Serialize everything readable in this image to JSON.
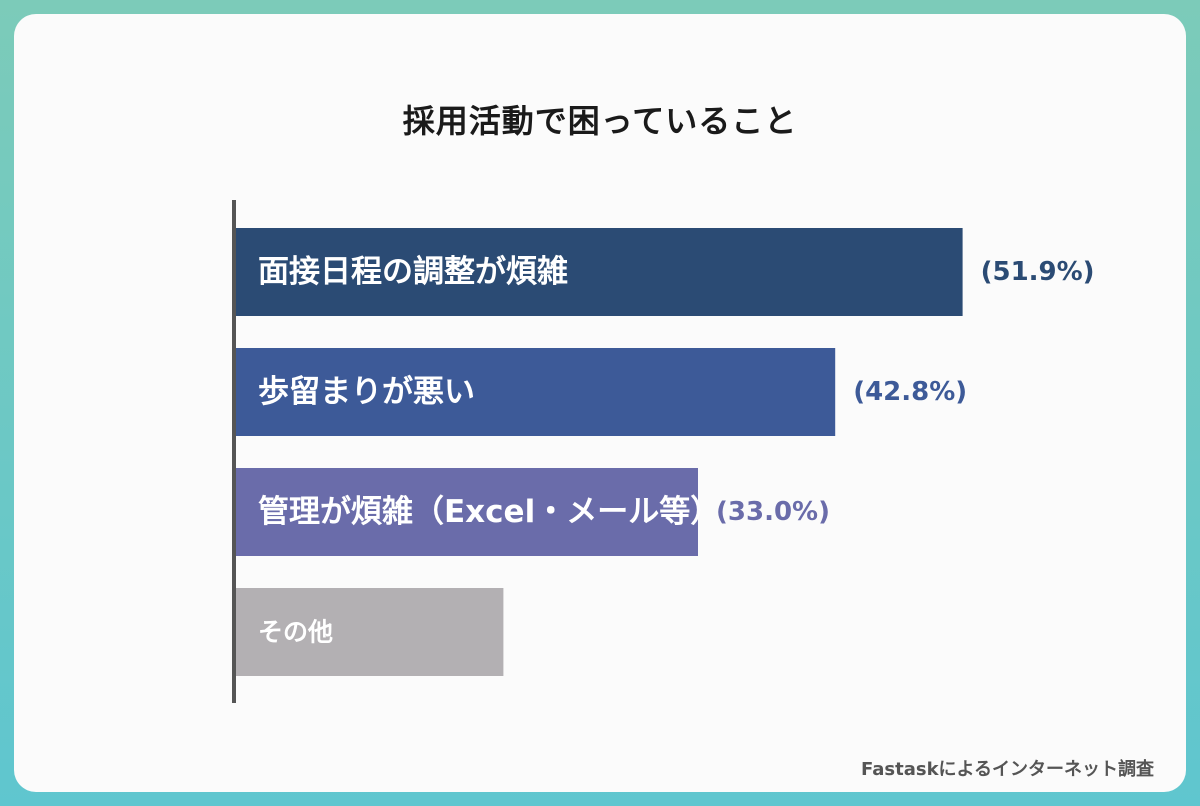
{
  "chart_data": {
    "type": "bar",
    "orientation": "horizontal",
    "title": "採用活動で困っていること",
    "categories": [
      "面接日程の調整が煩雑",
      "歩留まりが悪い",
      "管理が煩雑（Excel・メール等）",
      "その他"
    ],
    "values": [
      51.9,
      42.8,
      33.0,
      19.1
    ],
    "value_labels": [
      "(51.9%)",
      "(42.8%)",
      "(33.0%)",
      ""
    ],
    "colors": [
      "#2b4b74",
      "#3d5a98",
      "#6a6caa",
      "#b3b0b3"
    ],
    "label_colors": [
      "#2b4b74",
      "#3d5a98",
      "#6a6caa",
      ""
    ],
    "grid": false,
    "legend": "none"
  },
  "source": "Fastaskによるインターネット調査"
}
